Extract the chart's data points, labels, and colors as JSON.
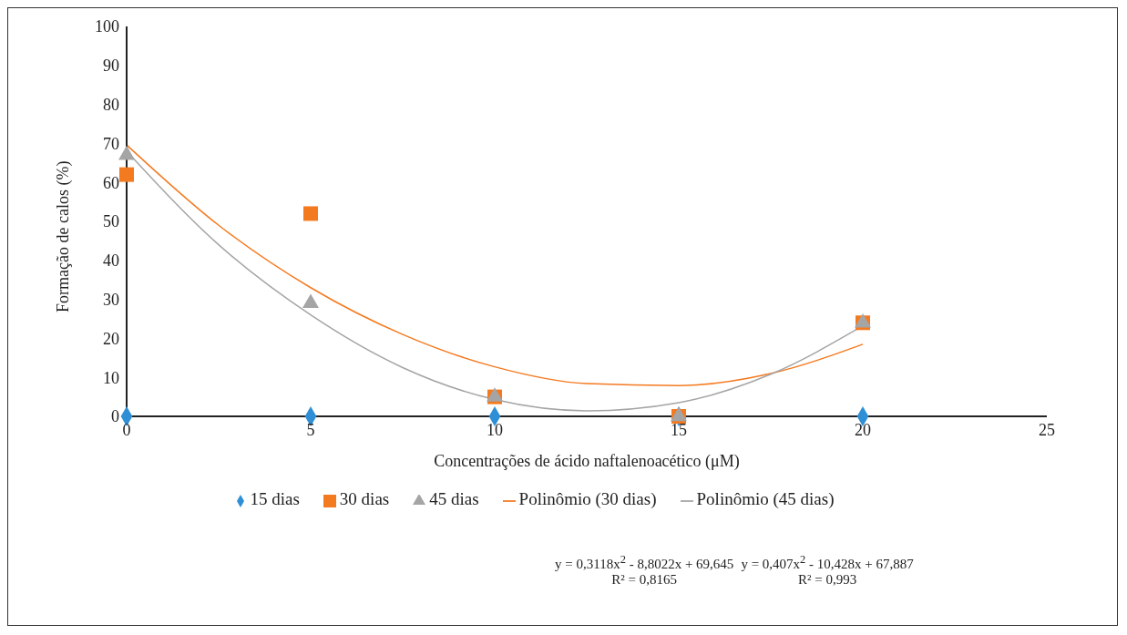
{
  "chart_data": {
    "type": "scatter",
    "xlabel": "Concentrações de ácido naftalenoacético (μM)",
    "ylabel": "Formação de calos (%)",
    "x": [
      0,
      5,
      10,
      15,
      20
    ],
    "series": [
      {
        "name": "15 dias",
        "color": "#2e8fd6",
        "marker": "diamond",
        "values": [
          0,
          0,
          0,
          0,
          0
        ]
      },
      {
        "name": "30 dias",
        "color": "#f47a20",
        "marker": "square",
        "values": [
          62,
          52,
          5,
          0,
          24
        ]
      },
      {
        "name": "45 dias",
        "color": "#a5a5a5",
        "marker": "triangle",
        "values": [
          67,
          29,
          5,
          0,
          24
        ]
      },
      {
        "name": "Polinômio (30 dias)",
        "type": "line",
        "color": "#f47a20",
        "marker": "none",
        "x": [
          0,
          2.5,
          5,
          7.5,
          10,
          12.5,
          15,
          17.5,
          20
        ],
        "values": [
          69.6,
          49,
          33,
          21,
          12.7,
          8.4,
          7.9,
          11,
          18.5
        ]
      },
      {
        "name": "Polinômio (45 dias)",
        "type": "line",
        "color": "#a5a5a5",
        "marker": "none",
        "x": [
          0,
          2.5,
          5,
          7.5,
          10,
          12.5,
          15,
          17.5,
          20
        ],
        "values": [
          68,
          44,
          26,
          12.5,
          4.3,
          1.4,
          3.5,
          10.8,
          23.2
        ]
      }
    ],
    "xlim": [
      0,
      25
    ],
    "xticks": [
      0,
      5,
      10,
      15,
      20,
      25
    ],
    "ylim": [
      0,
      100
    ],
    "yticks": [
      0,
      10,
      20,
      30,
      40,
      50,
      60,
      70,
      80,
      90,
      100
    ],
    "grid": false,
    "legend": "bottom",
    "annotations": [
      "y = 0,3118x$^{2}$  - 8,8022x  + 69,645",
      "R² = 0,8165",
      "y = 0,407x$^{2}$  - 10,428x  + 67,887",
      "R² = 0,993"
    ]
  }
}
